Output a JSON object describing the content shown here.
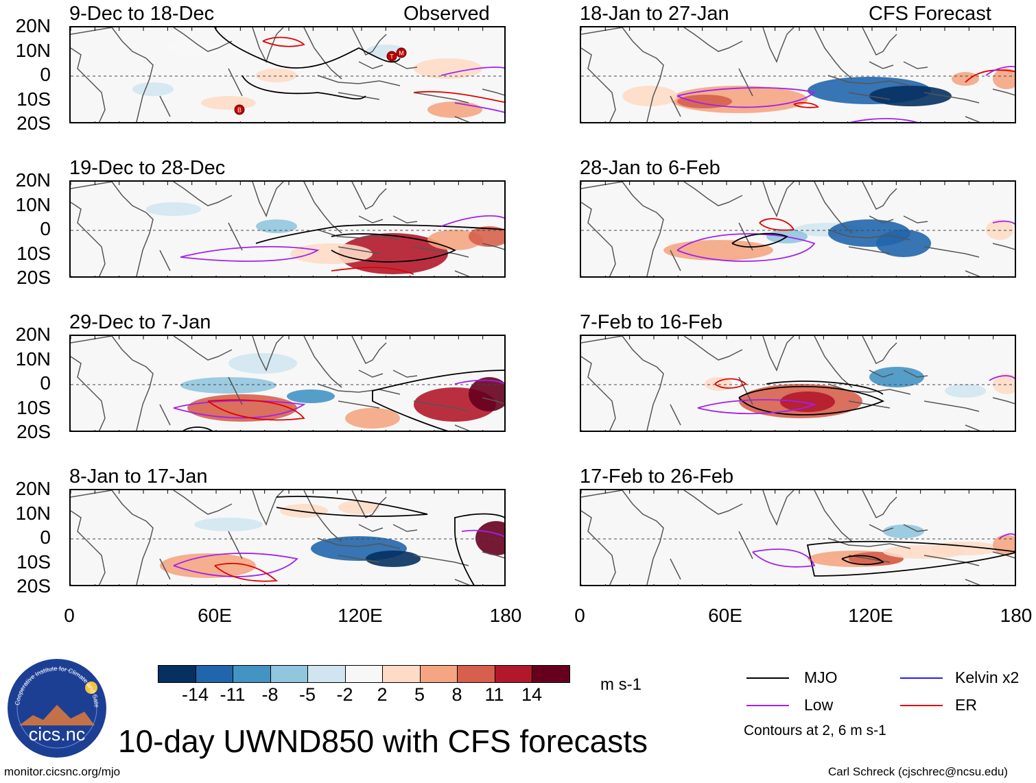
{
  "figure": {
    "title": "10-day UWND850 with CFS forecasts",
    "left_column_label": "Observed",
    "right_column_label": "CFS Forecast",
    "units": "m s-1",
    "contour_note": "Contours at 2, 6 m s-1",
    "url": "monitor.cicsnc.org/mjo",
    "credit": "Carl Schreck (cjschrec@ncsu.edu)",
    "logo": {
      "arc_text": "Cooperative Institute for Climate and Satellites",
      "wordmark": "cics.nc"
    }
  },
  "chart_data": {
    "type": "map",
    "variable": "850-hPa zonal wind anomaly",
    "lon_ticks": [
      "0",
      "60E",
      "120E",
      "180"
    ],
    "lat_ticks": [
      "20N",
      "10N",
      "0",
      "10S",
      "20S"
    ],
    "panels": [
      {
        "column": "observed",
        "period": "9-Dec to 18-Dec"
      },
      {
        "column": "observed",
        "period": "19-Dec to 28-Dec"
      },
      {
        "column": "observed",
        "period": "29-Dec to 7-Jan"
      },
      {
        "column": "observed",
        "period": "8-Jan to 17-Jan"
      },
      {
        "column": "forecast",
        "period": "18-Jan to 27-Jan"
      },
      {
        "column": "forecast",
        "period": "28-Jan to 6-Feb"
      },
      {
        "column": "forecast",
        "period": "7-Feb to 16-Feb"
      },
      {
        "column": "forecast",
        "period": "17-Feb to 26-Feb"
      }
    ],
    "colorbar": {
      "ticks": [
        "-14",
        "-11",
        "-8",
        "-5",
        "-2",
        "2",
        "5",
        "8",
        "11",
        "14"
      ],
      "colors": [
        "#053061",
        "#2166ac",
        "#4393c3",
        "#92c5de",
        "#d1e5f0",
        "#f7f7f7",
        "#fddbc7",
        "#f4a582",
        "#d6604d",
        "#b2182b",
        "#67001f"
      ]
    },
    "legend": [
      {
        "label": "MJO",
        "color": "#000000"
      },
      {
        "label": "Kelvin x2",
        "color": "#1f1fff"
      },
      {
        "label": "Low",
        "color": "#a020f0"
      },
      {
        "label": "ER",
        "color": "#e00000"
      }
    ],
    "storm_markers": [
      {
        "panel": "9-Dec to 18-Dec",
        "letter": "T"
      },
      {
        "panel": "9-Dec to 18-Dec",
        "letter": "M"
      },
      {
        "panel": "9-Dec to 18-Dec",
        "letter": "B"
      }
    ]
  }
}
